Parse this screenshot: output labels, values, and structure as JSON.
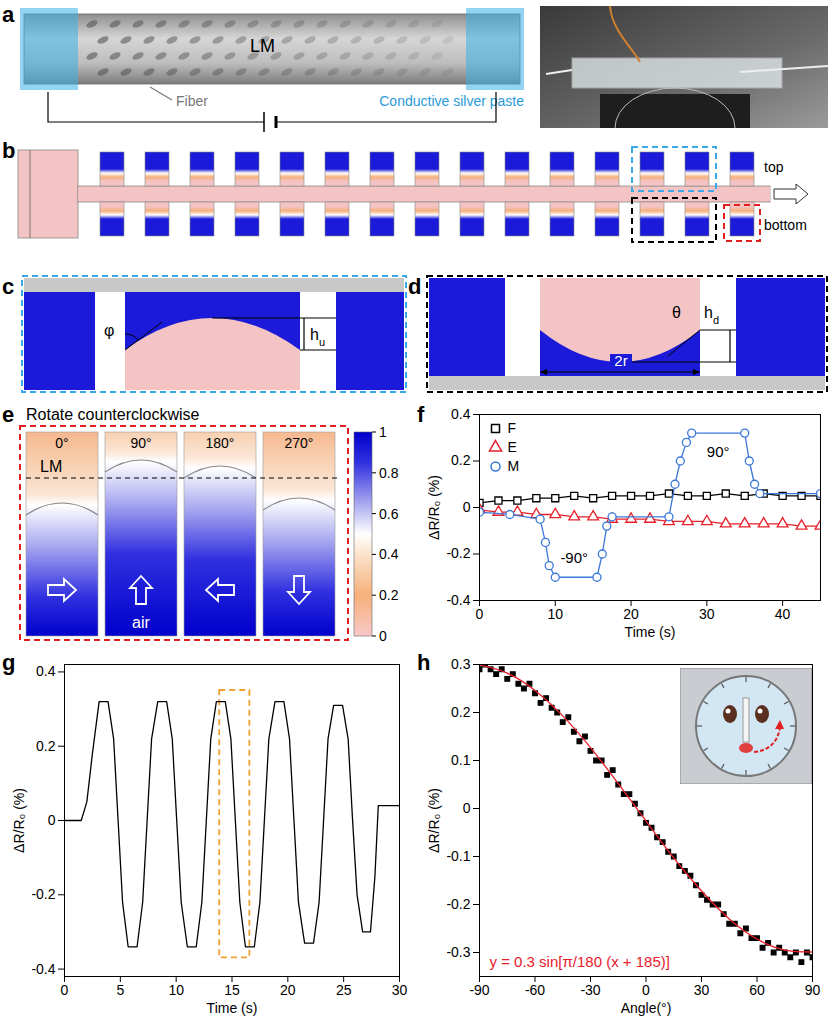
{
  "panels": {
    "a": {
      "letter": "a",
      "liquid": "LM",
      "fiber": "Fiber",
      "paste": "Conductive silver paste"
    },
    "b": {
      "letter": "b",
      "top": "top",
      "bottom": "bottom"
    },
    "c": {
      "letter": "c",
      "angle": "φ",
      "height": "h",
      "height_sub": "u"
    },
    "d": {
      "letter": "d",
      "angle": "θ",
      "height": "h",
      "height_sub": "d",
      "width": "2r"
    },
    "e": {
      "letter": "e",
      "title": "Rotate counterclockwise",
      "angles": [
        "0°",
        "90°",
        "180°",
        "270°"
      ],
      "liquid": "LM",
      "gas": "air",
      "colorbar": {
        "range": [
          0,
          1
        ],
        "ticks": [
          1,
          0.8,
          0.6,
          0.4,
          0.2,
          0
        ]
      }
    }
  },
  "chart_data": [
    {
      "panel": "f",
      "type": "line",
      "xlabel": "Time (s)",
      "ylabel": "ΔR/R₀ (%)",
      "xlim": [
        0,
        45
      ],
      "xticks": [
        0,
        10,
        20,
        30,
        40
      ],
      "ylim": [
        -0.4,
        0.4
      ],
      "yticks": [
        -0.4,
        -0.2,
        0,
        0.2,
        0.4
      ],
      "grid": false,
      "legend": "top-left",
      "series": [
        {
          "name": "F",
          "color": "#000000",
          "marker": "square",
          "x": [
            0,
            2.5,
            5,
            7.5,
            10,
            12.5,
            15,
            17.5,
            20,
            22.5,
            25,
            27.5,
            30,
            32.5,
            35,
            37.5,
            40,
            42.5,
            45
          ],
          "values": [
            0.02,
            0.03,
            0.03,
            0.04,
            0.04,
            0.05,
            0.04,
            0.05,
            0.05,
            0.05,
            0.06,
            0.05,
            0.05,
            0.06,
            0.05,
            0.06,
            0.05,
            0.05,
            0.05
          ]
        },
        {
          "name": "E",
          "color": "#e8202a",
          "marker": "triangle",
          "x": [
            0,
            2.5,
            5,
            7.5,
            10,
            12.5,
            15,
            17.5,
            20,
            22.5,
            25,
            27.5,
            30,
            32.5,
            35,
            37.5,
            40,
            42.5,
            45
          ],
          "values": [
            -0.01,
            -0.02,
            -0.02,
            -0.03,
            -0.03,
            -0.04,
            -0.04,
            -0.05,
            -0.05,
            -0.05,
            -0.06,
            -0.06,
            -0.06,
            -0.07,
            -0.07,
            -0.07,
            -0.07,
            -0.08,
            -0.08
          ]
        },
        {
          "name": "M",
          "color": "#3a78d8",
          "marker": "circle",
          "x": [
            0,
            4,
            8,
            8.7,
            9.2,
            10,
            15.5,
            16.2,
            16.8,
            17.5,
            25,
            25.8,
            26.5,
            27.3,
            28,
            35,
            35.6,
            36.3,
            37,
            45
          ],
          "values": [
            -0.02,
            -0.03,
            -0.05,
            -0.15,
            -0.25,
            -0.3,
            -0.3,
            -0.2,
            -0.08,
            -0.04,
            -0.04,
            0.1,
            0.2,
            0.28,
            0.32,
            0.32,
            0.2,
            0.1,
            0.06,
            0.06
          ]
        }
      ],
      "annotations": [
        {
          "text": "-90°",
          "x": 12.5,
          "y": -0.22,
          "color": "#000000"
        },
        {
          "text": "90°",
          "x": 31.5,
          "y": 0.24,
          "color": "#000000"
        }
      ]
    },
    {
      "panel": "g",
      "type": "line",
      "xlabel": "Time (s)",
      "ylabel": "ΔR/R₀ (%)",
      "xlim": [
        0,
        30
      ],
      "xticks": [
        0,
        5,
        10,
        15,
        20,
        25,
        30
      ],
      "ylim": [
        -0.42,
        0.42
      ],
      "yticks": [
        -0.4,
        -0.2,
        0,
        0.2,
        0.4
      ],
      "grid": false,
      "series": [
        {
          "color": "#000000",
          "x": [
            0,
            1.5,
            2.0,
            2.5,
            3.1,
            3.9,
            4.4,
            4.8,
            5.2,
            5.7,
            6.5,
            7.0,
            7.4,
            7.8,
            8.35,
            9.15,
            9.65,
            10.05,
            10.45,
            11.0,
            11.8,
            12.3,
            12.7,
            13.1,
            13.6,
            14.4,
            14.9,
            15.3,
            15.7,
            16.2,
            17.0,
            17.5,
            17.9,
            18.3,
            18.85,
            19.65,
            20.15,
            20.55,
            20.95,
            21.5,
            22.3,
            22.8,
            23.2,
            23.6,
            24.1,
            24.9,
            25.4,
            25.8,
            26.2,
            26.7,
            27.4,
            27.8,
            28.1,
            30
          ],
          "values": [
            0,
            0,
            0.05,
            0.18,
            0.32,
            0.32,
            0.22,
            0,
            -0.22,
            -0.34,
            -0.34,
            -0.22,
            0,
            0.22,
            0.32,
            0.32,
            0.22,
            0,
            -0.22,
            -0.34,
            -0.34,
            -0.22,
            0,
            0.22,
            0.32,
            0.32,
            0.22,
            0,
            -0.22,
            -0.34,
            -0.34,
            -0.22,
            0,
            0.22,
            0.32,
            0.32,
            0.22,
            0,
            -0.22,
            -0.33,
            -0.33,
            -0.22,
            0,
            0.22,
            0.31,
            0.31,
            0.22,
            0,
            -0.2,
            -0.3,
            -0.3,
            -0.15,
            0.04,
            0.04
          ]
        }
      ],
      "highlight": {
        "x": [
          13.9,
          16.6
        ],
        "y": [
          -0.37,
          0.35
        ],
        "color": "#f0a030"
      }
    },
    {
      "panel": "h",
      "type": "scatter",
      "xlabel": "Angle(°)",
      "ylabel": "ΔR/R₀ (%)",
      "xlim": [
        -90,
        90
      ],
      "xticks": [
        -90,
        -60,
        -30,
        0,
        30,
        60,
        90
      ],
      "ylim": [
        -0.35,
        0.3
      ],
      "yticks": [
        -0.3,
        -0.2,
        -0.1,
        0,
        0.1,
        0.2,
        0.3
      ],
      "grid": false,
      "series": [
        {
          "type": "scatter",
          "color": "#000000",
          "marker": "square",
          "x": [
            -90,
            -87,
            -84,
            -81,
            -78,
            -75,
            -72,
            -69,
            -66,
            -63,
            -60,
            -57,
            -54,
            -51,
            -48,
            -45,
            -42,
            -39,
            -36,
            -33,
            -30,
            -27,
            -24,
            -21,
            -18,
            -15,
            -12,
            -9,
            -6,
            -3,
            0,
            3,
            6,
            9,
            12,
            15,
            18,
            21,
            24,
            27,
            30,
            33,
            36,
            39,
            42,
            45,
            48,
            51,
            54,
            57,
            60,
            63,
            66,
            69,
            72,
            75,
            78,
            81,
            84,
            87,
            90
          ],
          "values": [
            0.29,
            0.3,
            0.29,
            0.28,
            0.29,
            0.27,
            0.28,
            0.26,
            0.25,
            0.26,
            0.24,
            0.22,
            0.23,
            0.21,
            0.2,
            0.18,
            0.19,
            0.16,
            0.14,
            0.15,
            0.12,
            0.1,
            0.1,
            0.07,
            0.08,
            0.05,
            0.03,
            0.03,
            0.01,
            -0.01,
            -0.03,
            -0.04,
            -0.06,
            -0.07,
            -0.09,
            -0.1,
            -0.12,
            -0.13,
            -0.14,
            -0.16,
            -0.18,
            -0.19,
            -0.2,
            -0.2,
            -0.22,
            -0.24,
            -0.24,
            -0.26,
            -0.25,
            -0.27,
            -0.27,
            -0.29,
            -0.28,
            -0.3,
            -0.29,
            -0.3,
            -0.31,
            -0.3,
            -0.32,
            -0.3,
            -0.31
          ]
        },
        {
          "type": "line",
          "color": "#e8202a",
          "x": [
            -90,
            -75,
            -60,
            -45,
            -30,
            -15,
            0,
            15,
            30,
            45,
            60,
            75,
            90
          ],
          "values": [
            0.299,
            0.282,
            0.246,
            0.193,
            0.127,
            0.052,
            -0.026,
            -0.103,
            -0.172,
            -0.23,
            -0.272,
            -0.295,
            -0.299
          ]
        }
      ],
      "annotations": [
        {
          "text": "y = 0.3 sin[π/180 (x + 185)]",
          "color": "#e8202a"
        }
      ]
    }
  ]
}
